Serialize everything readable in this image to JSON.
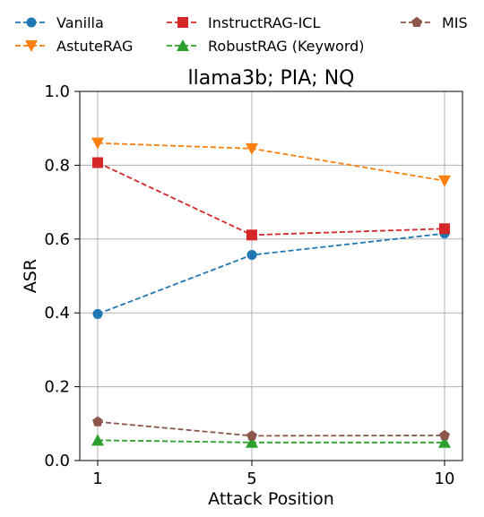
{
  "chart_data": {
    "type": "line",
    "title": "llama3b; PIA; NQ",
    "xlabel": "Attack Position",
    "ylabel": "ASR",
    "x": [
      1,
      5,
      10
    ],
    "x_ticks": [
      "1",
      "5",
      "10"
    ],
    "y_ticks": [
      "0.0",
      "0.2",
      "0.4",
      "0.6",
      "0.8",
      "1.0"
    ],
    "ylim": [
      0,
      1
    ],
    "grid": true,
    "legend_position": "top",
    "series": [
      {
        "name": "Vanilla",
        "color": "#1f77b4",
        "marker": "circle",
        "values": [
          0.397,
          0.557,
          0.615
        ]
      },
      {
        "name": "AstuteRAG",
        "color": "#ff7f0e",
        "marker": "triangle-down",
        "values": [
          0.86,
          0.845,
          0.758
        ]
      },
      {
        "name": "InstructRAG-ICL",
        "color": "#d62728",
        "marker": "square",
        "values": [
          0.807,
          0.611,
          0.628
        ]
      },
      {
        "name": "RobustRAG (Keyword)",
        "color": "#2ca02c",
        "marker": "triangle-up",
        "values": [
          0.055,
          0.049,
          0.049
        ]
      },
      {
        "name": "MIS",
        "color": "#8c564b",
        "marker": "pentagon",
        "values": [
          0.105,
          0.067,
          0.068
        ]
      }
    ]
  }
}
